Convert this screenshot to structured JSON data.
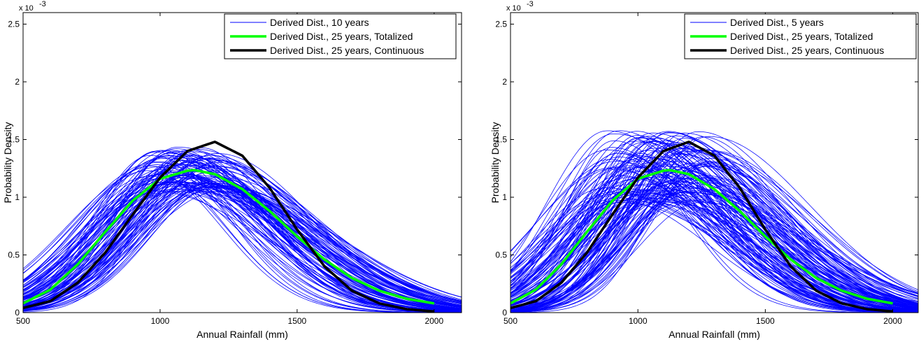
{
  "colors": {
    "derived": "#0000ff",
    "totalized": "#00ff00",
    "continuous": "#000000"
  },
  "chart_data": [
    {
      "type": "line",
      "title": "",
      "xlabel": "Annual Rainfall (mm)",
      "ylabel": "Probability Density",
      "y_multiplier_label": "x 10",
      "y_multiplier_exponent": "-3",
      "xlim": [
        500,
        2100
      ],
      "ylim": [
        0,
        2.6
      ],
      "xticks": [
        "500",
        "1000",
        "1500",
        "2000"
      ],
      "yticks": [
        "0",
        "0.5",
        "1",
        "1.5",
        "2",
        "2.5"
      ],
      "legend_position": "top-right",
      "legend": [
        "Derived Dist., 10 years",
        "Derived Dist., 25 years, Totalized",
        "Derived Dist., 25 years, Continuous"
      ],
      "series": [
        {
          "name": "Derived Dist., 10 years",
          "kind": "ensemble",
          "description_note": "many overlapping blue curves",
          "center_mean": 1080,
          "mean_range": [
            960,
            1220
          ],
          "peak_range": [
            1.05,
            1.45
          ],
          "x_range": [
            500,
            2100
          ]
        },
        {
          "name": "Derived Dist., 25 years, Totalized",
          "x": [
            500,
            600,
            700,
            800,
            900,
            1000,
            1100,
            1125,
            1200,
            1300,
            1400,
            1500,
            1600,
            1700,
            1800,
            1900,
            2000
          ],
          "y": [
            0.08,
            0.2,
            0.42,
            0.7,
            0.97,
            1.16,
            1.23,
            1.235,
            1.2,
            1.07,
            0.88,
            0.66,
            0.46,
            0.3,
            0.19,
            0.12,
            0.08
          ]
        },
        {
          "name": "Derived Dist., 25 years, Continuous",
          "x": [
            500,
            600,
            700,
            800,
            900,
            1000,
            1100,
            1200,
            1300,
            1400,
            1500,
            1600,
            1700,
            1800,
            1900,
            2000
          ],
          "y": [
            0.04,
            0.1,
            0.26,
            0.52,
            0.85,
            1.17,
            1.4,
            1.48,
            1.36,
            1.08,
            0.72,
            0.4,
            0.19,
            0.08,
            0.03,
            0.01
          ]
        }
      ]
    },
    {
      "type": "line",
      "title": "",
      "xlabel": "Annual Rainfall (mm)",
      "ylabel": "Probability Density",
      "y_multiplier_label": "x 10",
      "y_multiplier_exponent": "-3",
      "xlim": [
        500,
        2100
      ],
      "ylim": [
        0,
        2.6
      ],
      "xticks": [
        "500",
        "1000",
        "1500",
        "2000"
      ],
      "yticks": [
        "0",
        "0.5",
        "1",
        "1.5",
        "2",
        "2.5"
      ],
      "legend_position": "top-right",
      "legend": [
        "Derived Dist., 5 years",
        "Derived Dist., 25 years, Totalized",
        "Derived Dist., 25 years, Continuous"
      ],
      "series": [
        {
          "name": "Derived Dist., 5 years",
          "kind": "ensemble",
          "center_mean": 1080,
          "mean_range": [
            870,
            1290
          ],
          "peak_range": [
            0.95,
            1.58
          ],
          "x_range": [
            500,
            2100
          ]
        },
        {
          "name": "Derived Dist., 25 years, Totalized",
          "x": [
            500,
            600,
            700,
            800,
            900,
            1000,
            1100,
            1125,
            1200,
            1300,
            1400,
            1500,
            1600,
            1700,
            1800,
            1900,
            2000
          ],
          "y": [
            0.08,
            0.2,
            0.42,
            0.7,
            0.97,
            1.16,
            1.23,
            1.235,
            1.2,
            1.07,
            0.88,
            0.66,
            0.46,
            0.3,
            0.19,
            0.12,
            0.08
          ]
        },
        {
          "name": "Derived Dist., 25 years, Continuous",
          "x": [
            500,
            600,
            700,
            800,
            900,
            1000,
            1100,
            1200,
            1300,
            1400,
            1500,
            1600,
            1700,
            1800,
            1900,
            2000
          ],
          "y": [
            0.04,
            0.1,
            0.26,
            0.52,
            0.85,
            1.17,
            1.4,
            1.48,
            1.36,
            1.08,
            0.72,
            0.4,
            0.19,
            0.08,
            0.03,
            0.01
          ]
        }
      ]
    }
  ]
}
